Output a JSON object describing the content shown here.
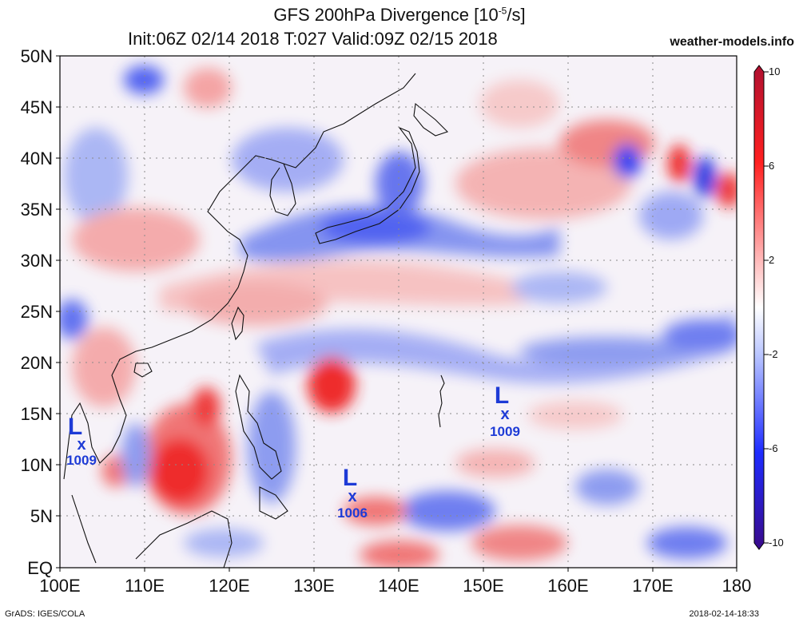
{
  "title": {
    "line1_prefix": "GFS 200hPa Divergence [10",
    "line1_exp": "-5",
    "line1_suffix": "/s]",
    "line2": "Init:06Z 02/14 2018 T:027 Valid:09Z 02/15 2018",
    "site": "weather-models.info"
  },
  "footer": {
    "left": "GrADS: IGES/COLA",
    "right": "2018-02-14-18:33"
  },
  "axes": {
    "lat_labels": [
      "50N",
      "45N",
      "40N",
      "35N",
      "30N",
      "25N",
      "20N",
      "15N",
      "10N",
      "5N",
      "EQ"
    ],
    "lon_labels": [
      "100E",
      "110E",
      "120E",
      "130E",
      "140E",
      "150E",
      "160E",
      "170E",
      "180"
    ],
    "lat_range": [
      0,
      50
    ],
    "lon_range": [
      100,
      180
    ],
    "grid": "dotted"
  },
  "colorbar": {
    "labels": [
      "10",
      "6",
      "2",
      "-2",
      "-6",
      "-10"
    ],
    "min": -10,
    "max": 10,
    "colors": {
      "max": "#b01030",
      "positive": "#ff2020",
      "weak_positive": "#ffb8b8",
      "zero": "#ffffff",
      "weak_negative": "#b8c4ff",
      "negative": "#1e2cff",
      "min": "#3a0a8a"
    }
  },
  "lows": [
    {
      "label": "L",
      "marker": "x",
      "pressure": "1009",
      "lon": 102.8,
      "lat": 12.1
    },
    {
      "label": "L",
      "marker": "x",
      "pressure": "1006",
      "lon": 134.5,
      "lat": 6.8
    },
    {
      "label": "L",
      "marker": "x",
      "pressure": "1009",
      "lon": 152.5,
      "lat": 14.9
    }
  ]
}
